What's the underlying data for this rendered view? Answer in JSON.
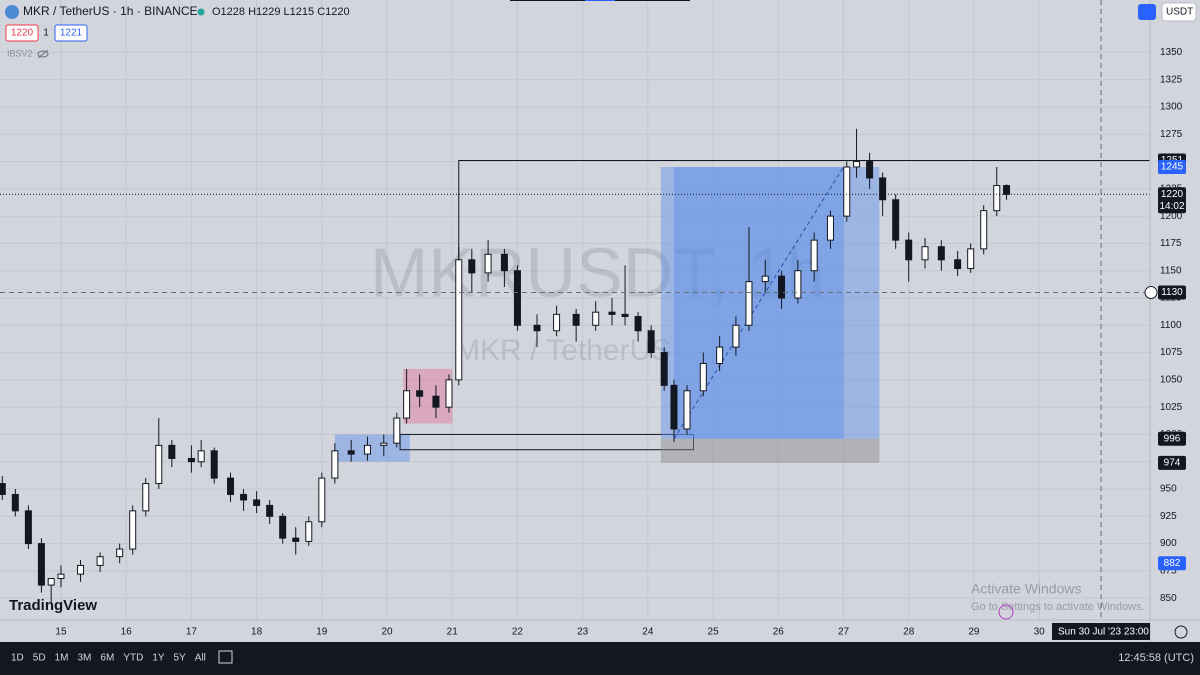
{
  "header": {
    "symbol": "MKR / TetherUS · 1h · BINANCE",
    "ohlc": "O1228 H1229 L1215 C1220",
    "sell": "1220",
    "spread": "1",
    "buy": "1221",
    "indicator": "IBSV2",
    "currency": "USDT"
  },
  "watermark": {
    "main": "MKRUSDT, 1h",
    "sub": "MKR / TetherUS"
  },
  "logo": "TradingView",
  "windows": {
    "title": "Activate Windows",
    "body": "Go to Settings to activate Windows."
  },
  "crosshair_date": "Sun 30 Jul '23   23:00",
  "toolbar": {
    "ranges": [
      "1D",
      "5D",
      "1M",
      "3M",
      "6M",
      "YTD",
      "1Y",
      "5Y",
      "All"
    ],
    "clock": "12:45:58 (UTC)"
  },
  "chart_data": {
    "type": "candlestick",
    "color": "#131722",
    "grid": true,
    "x": [
      14.1,
      14.3,
      14.5,
      14.7,
      14.85,
      15.0,
      15.3,
      15.6,
      15.9,
      16.1,
      16.3,
      16.5,
      16.7,
      17.0,
      17.15,
      17.35,
      17.6,
      17.8,
      18.0,
      18.2,
      18.4,
      18.6,
      18.8,
      19.0,
      19.2,
      19.45,
      19.7,
      19.95,
      20.15,
      20.3,
      20.5,
      20.75,
      20.95,
      21.1,
      21.3,
      21.55,
      21.8,
      22.0,
      22.3,
      22.6,
      22.9,
      23.2,
      23.45,
      23.65,
      23.85,
      24.05,
      24.25,
      24.4,
      24.6,
      24.85,
      25.1,
      25.35,
      25.55,
      25.8,
      26.05,
      26.3,
      26.55,
      26.8,
      27.05,
      27.2,
      27.4,
      27.6,
      27.8,
      28.0,
      28.25,
      28.5,
      28.75,
      28.95,
      29.15,
      29.35,
      29.5
    ],
    "open": [
      955,
      945,
      930,
      900,
      862,
      868,
      872,
      880,
      888,
      895,
      930,
      955,
      990,
      978,
      975,
      985,
      960,
      945,
      940,
      935,
      925,
      905,
      902,
      920,
      960,
      985,
      982,
      990,
      992,
      1015,
      1040,
      1035,
      1025,
      1050,
      1160,
      1148,
      1165,
      1150,
      1100,
      1095,
      1110,
      1100,
      1112,
      1110,
      1108,
      1095,
      1075,
      1045,
      1005,
      1040,
      1065,
      1080,
      1100,
      1140,
      1145,
      1125,
      1150,
      1178,
      1200,
      1245,
      1250,
      1235,
      1215,
      1178,
      1160,
      1172,
      1160,
      1152,
      1170,
      1205,
      1228
    ],
    "high": [
      962,
      950,
      935,
      905,
      868,
      880,
      885,
      892,
      900,
      935,
      960,
      1015,
      995,
      990,
      995,
      988,
      965,
      950,
      948,
      940,
      928,
      915,
      925,
      965,
      992,
      995,
      998,
      1000,
      1020,
      1060,
      1055,
      1045,
      1055,
      1172,
      1170,
      1178,
      1170,
      1155,
      1110,
      1118,
      1115,
      1122,
      1125,
      1155,
      1112,
      1100,
      1080,
      1050,
      1045,
      1075,
      1090,
      1108,
      1190,
      1160,
      1150,
      1160,
      1185,
      1205,
      1250,
      1280,
      1258,
      1240,
      1220,
      1185,
      1180,
      1178,
      1168,
      1175,
      1210,
      1245,
      1229
    ],
    "low": [
      940,
      925,
      895,
      855,
      845,
      860,
      865,
      874,
      882,
      890,
      925,
      950,
      970,
      965,
      970,
      955,
      938,
      930,
      928,
      918,
      900,
      890,
      898,
      915,
      955,
      975,
      976,
      980,
      988,
      1010,
      1025,
      1015,
      1020,
      1045,
      1130,
      1140,
      1135,
      1095,
      1080,
      1090,
      1085,
      1095,
      1100,
      1100,
      1085,
      1070,
      1040,
      993,
      1000,
      1035,
      1058,
      1072,
      1095,
      1130,
      1115,
      1120,
      1140,
      1170,
      1195,
      1235,
      1225,
      1200,
      1170,
      1140,
      1152,
      1150,
      1145,
      1148,
      1165,
      1200,
      1215
    ],
    "close": [
      945,
      930,
      900,
      862,
      868,
      872,
      880,
      888,
      895,
      930,
      955,
      990,
      978,
      975,
      985,
      960,
      945,
      940,
      935,
      925,
      905,
      902,
      920,
      960,
      985,
      982,
      990,
      992,
      1015,
      1040,
      1035,
      1025,
      1050,
      1160,
      1148,
      1165,
      1150,
      1100,
      1095,
      1110,
      1100,
      1112,
      1110,
      1108,
      1095,
      1075,
      1045,
      1005,
      1040,
      1065,
      1080,
      1100,
      1140,
      1145,
      1125,
      1150,
      1178,
      1200,
      1245,
      1250,
      1235,
      1215,
      1178,
      1160,
      1172,
      1160,
      1152,
      1170,
      1205,
      1228,
      1220
    ],
    "xlim": [
      14.065,
      31.7
    ],
    "ylim": [
      830,
      1398
    ],
    "xticks": [
      15,
      16,
      17,
      18,
      19,
      20,
      21,
      22,
      23,
      24,
      25,
      26,
      27,
      28,
      29,
      30
    ],
    "yticks": [
      850,
      875,
      900,
      925,
      950,
      975,
      1000,
      1025,
      1050,
      1075,
      1100,
      1125,
      1150,
      1175,
      1200,
      1225,
      1250,
      1275,
      1300,
      1325,
      1350
    ],
    "drawings": [
      {
        "kind": "box",
        "x": [
          19.2,
          20.35
        ],
        "y": [
          975,
          1000
        ],
        "color": "#5b8de8"
      },
      {
        "kind": "box",
        "x": [
          20.25,
          21.0
        ],
        "y": [
          1010,
          1060
        ],
        "color": "#e0709a"
      },
      {
        "kind": "outline",
        "x": [
          20.2,
          24.7
        ],
        "y": [
          986,
          1000
        ],
        "color": "#131722"
      },
      {
        "kind": "box",
        "x": [
          24.2,
          27.55
        ],
        "y": [
          996,
          1245
        ],
        "color": "#5b8de8"
      },
      {
        "kind": "box",
        "x": [
          24.4,
          27.0
        ],
        "y": [
          996,
          1245
        ],
        "color": "#5b8de8"
      },
      {
        "kind": "box",
        "x": [
          24.2,
          27.55
        ],
        "y": [
          974,
          996
        ],
        "color": "#888888"
      },
      {
        "kind": "diagonal",
        "x": [
          24.4,
          27.0
        ],
        "y": [
          996,
          1245
        ],
        "color": "#2a4fa8"
      },
      {
        "kind": "ray",
        "x": [
          21.1,
          31.7
        ],
        "y": [
          1050,
          1251
        ],
        "color": "#131722"
      }
    ],
    "crosshair": {
      "x": 30.95,
      "y": 1130
    },
    "last_price": 1220,
    "countdown": "14:02",
    "price_tags": [
      {
        "value": 1251,
        "color": "#131722"
      },
      {
        "value": 1245,
        "color": "#2962ff"
      },
      {
        "value": 1220,
        "color": "#131722"
      },
      {
        "value": 1130,
        "color": "#131722"
      },
      {
        "value": 996,
        "color": "#131722"
      },
      {
        "value": 974,
        "color": "#131722"
      },
      {
        "value": 882,
        "color": "#2962ff"
      }
    ]
  }
}
